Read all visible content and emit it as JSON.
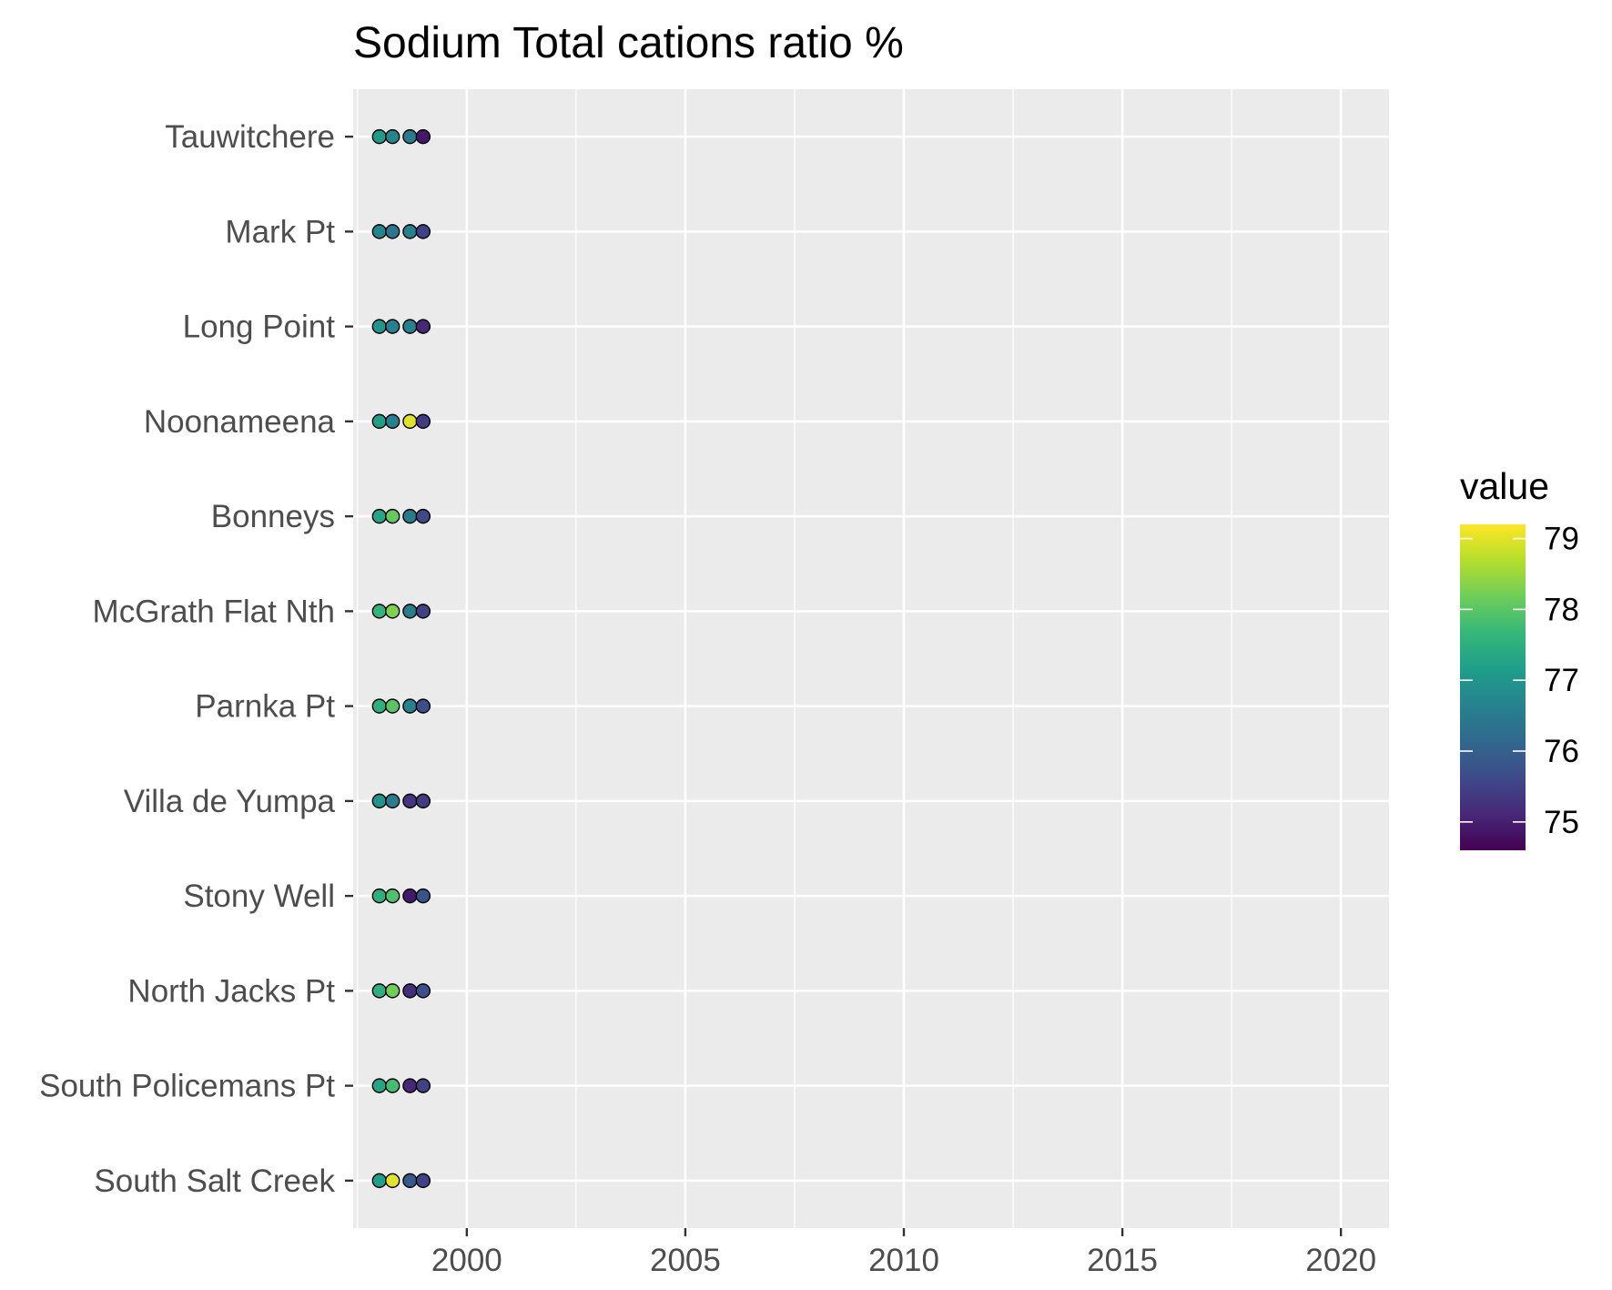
{
  "chart_data": {
    "type": "scatter",
    "title": "Sodium Total cations ratio %",
    "xlabel": "",
    "ylabel": "",
    "xlim": [
      1997.4,
      2021.1
    ],
    "x_ticks": [
      2000,
      2005,
      2010,
      2015,
      2020
    ],
    "x_tick_labels": [
      "2000",
      "2005",
      "2010",
      "2015",
      "2020"
    ],
    "categories": [
      "South Salt Creek",
      "South Policemans Pt",
      "North Jacks Pt",
      "Stony Well",
      "Villa de Yumpa",
      "Parnka Pt",
      "McGrath Flat Nth",
      "Bonneys",
      "Noonameena",
      "Long Point",
      "Mark Pt",
      "Tauwitchere"
    ],
    "x": [
      1998.0,
      1998.3,
      1998.7,
      1999.0
    ],
    "series": [
      {
        "site": "Tauwitchere",
        "values": [
          77.1,
          76.7,
          76.5,
          74.9
        ]
      },
      {
        "site": "Mark Pt",
        "values": [
          76.7,
          76.4,
          76.6,
          75.5
        ]
      },
      {
        "site": "Long Point",
        "values": [
          77.0,
          76.6,
          76.6,
          75.1
        ]
      },
      {
        "site": "Noonameena",
        "values": [
          77.2,
          76.6,
          79.0,
          75.4
        ]
      },
      {
        "site": "Bonneys",
        "values": [
          77.3,
          78.1,
          76.5,
          75.6
        ]
      },
      {
        "site": "McGrath Flat Nth",
        "values": [
          77.6,
          78.3,
          76.5,
          75.5
        ]
      },
      {
        "site": "Parnka Pt",
        "values": [
          77.5,
          78.0,
          76.6,
          75.7
        ]
      },
      {
        "site": "Villa de Yumpa",
        "values": [
          77.0,
          76.5,
          75.3,
          75.4
        ]
      },
      {
        "site": "Stony Well",
        "values": [
          77.5,
          77.9,
          74.9,
          75.8
        ]
      },
      {
        "site": "North Jacks Pt",
        "values": [
          77.5,
          78.2,
          75.2,
          75.7
        ]
      },
      {
        "site": "South Policemans Pt",
        "values": [
          77.3,
          77.8,
          75.1,
          75.5
        ]
      },
      {
        "site": "South Salt Creek",
        "values": [
          77.2,
          79.0,
          75.9,
          75.5
        ]
      }
    ],
    "color_scale": {
      "name": "viridis",
      "min": 74.6,
      "max": 79.2,
      "stops": [
        "#440154",
        "#482878",
        "#3E4A89",
        "#31688E",
        "#26828E",
        "#1F9E89",
        "#35B779",
        "#6DCD59",
        "#B4DE2C",
        "#FDE725"
      ]
    },
    "legend": {
      "title": "value",
      "placement": "right",
      "ticks": [
        75,
        76,
        77,
        78,
        79
      ],
      "tick_labels": [
        "75",
        "76",
        "77",
        "78",
        "79"
      ]
    },
    "grid": true,
    "panel_background": "#EBEBEB",
    "grid_color": "#FFFFFF"
  }
}
